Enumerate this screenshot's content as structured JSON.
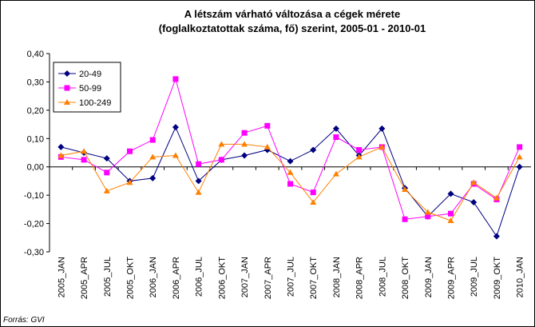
{
  "chart_data": {
    "type": "line",
    "title": [
      "A létszám várható változása a cégek mérete",
      "(foglalkoztatottak száma, fő) szerint, 2005-01 - 2010-01"
    ],
    "source": "Forrás: GVI",
    "categories": [
      "2005_JAN",
      "2005_APR",
      "2005_JUL",
      "2005_OKT",
      "2006_JAN",
      "2006_APR",
      "2006_JUL",
      "2006_OKT",
      "2007_JAN",
      "2007_APR",
      "2007_JUL",
      "2007_OKT",
      "2008_JAN",
      "2008_APR",
      "2008_JUL",
      "2008_OKT",
      "2009_JAN",
      "2009_APR",
      "2009_JUL",
      "2009_OKT",
      "2010_JAN"
    ],
    "series": [
      {
        "name": "20-49",
        "color": "#000080",
        "marker": "diamond",
        "values": [
          0.07,
          0.05,
          0.03,
          -0.05,
          -0.04,
          0.14,
          -0.05,
          0.025,
          0.04,
          0.06,
          0.02,
          0.06,
          0.135,
          0.04,
          0.135,
          -0.075,
          -0.175,
          -0.095,
          -0.125,
          -0.245,
          0.0
        ]
      },
      {
        "name": "50-99",
        "color": "#ff00ff",
        "marker": "square",
        "values": [
          0.035,
          0.025,
          -0.02,
          0.055,
          0.095,
          0.31,
          0.01,
          0.025,
          0.12,
          0.145,
          -0.06,
          -0.09,
          0.105,
          0.06,
          0.07,
          -0.185,
          -0.175,
          -0.165,
          -0.06,
          -0.115,
          0.07
        ]
      },
      {
        "name": "100-249",
        "color": "#ff8000",
        "marker": "triangle",
        "values": [
          0.04,
          0.055,
          -0.085,
          -0.055,
          0.035,
          0.04,
          -0.09,
          0.08,
          0.08,
          0.07,
          -0.02,
          -0.125,
          -0.025,
          0.035,
          0.07,
          -0.08,
          -0.16,
          -0.19,
          -0.055,
          -0.11,
          0.035
        ]
      }
    ],
    "ylim": [
      -0.3,
      0.4
    ],
    "yticks": [
      {
        "value": -0.3,
        "label": "-0,30"
      },
      {
        "value": -0.2,
        "label": "-0,20"
      },
      {
        "value": -0.1,
        "label": "-0,10"
      },
      {
        "value": 0,
        "label": "0,00"
      },
      {
        "value": 0.1,
        "label": "0,10"
      },
      {
        "value": 0.2,
        "label": "0,20"
      },
      {
        "value": 0.3,
        "label": "0,30"
      },
      {
        "value": 0.4,
        "label": "0,40"
      }
    ],
    "grid": false,
    "legend": "upper-left"
  }
}
